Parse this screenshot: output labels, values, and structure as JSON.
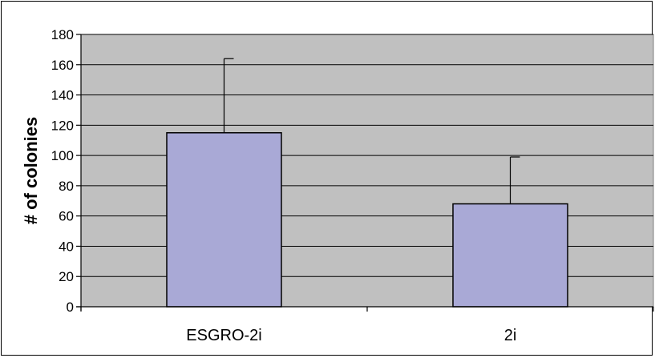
{
  "chart_data": {
    "type": "bar",
    "title": "",
    "xlabel": "",
    "ylabel": "# of colonies",
    "categories": [
      "ESGRO-2i",
      "2i"
    ],
    "values": [
      115,
      68
    ],
    "error_upper": [
      164,
      99
    ],
    "ylim": [
      0,
      180
    ],
    "yticks": [
      0,
      20,
      40,
      60,
      80,
      100,
      120,
      140,
      160,
      180
    ],
    "ytick_labels": [
      "0",
      "20",
      "40",
      "60",
      "80",
      "100",
      "120",
      "140",
      "160",
      "180"
    ],
    "grid": true,
    "legend": "none",
    "colors": {
      "plot_background": "#c0c0c0",
      "bar_fill": "#a9a9d6",
      "bar_stroke": "#000000",
      "gridline": "#000000"
    }
  }
}
